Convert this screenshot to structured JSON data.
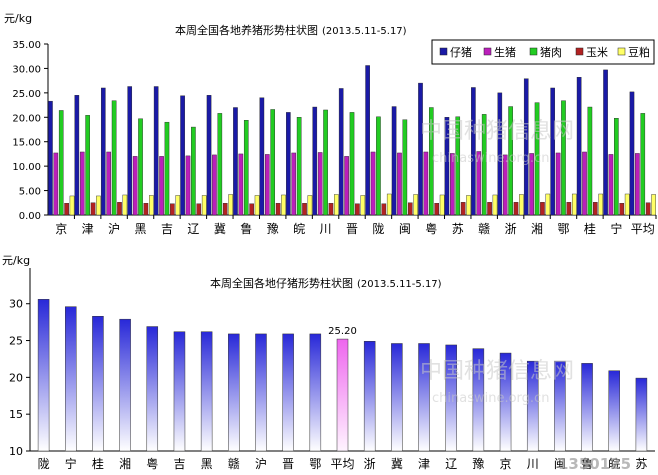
{
  "chart_data": [
    {
      "type": "bar",
      "title": "本周全国各地养猪形势柱状图",
      "date_range": "(2013.5.11-5.17)",
      "ylabel": "元/kg",
      "ylim": [
        0,
        35
      ],
      "ytick_labels": [
        "0.00",
        "5.00",
        "10.00",
        "15.00",
        "20.00",
        "25.00",
        "30.00",
        "35.00"
      ],
      "legend_position": "top-right",
      "categories": [
        "京",
        "津",
        "沪",
        "黑",
        "吉",
        "辽",
        "冀",
        "鲁",
        "豫",
        "皖",
        "川",
        "晋",
        "陇",
        "闽",
        "粤",
        "苏",
        "赣",
        "浙",
        "湘",
        "鄂",
        "桂",
        "宁",
        "平均"
      ],
      "series": [
        {
          "name": "仔猪",
          "color": "#1a1aa6",
          "values": [
            23.3,
            24.5,
            26.0,
            26.3,
            26.3,
            24.4,
            24.5,
            22.0,
            24.0,
            21.0,
            22.1,
            25.9,
            30.6,
            22.2,
            27.0,
            20.0,
            26.1,
            25.0,
            27.9,
            26.0,
            28.2,
            29.7,
            25.2
          ]
        },
        {
          "name": "生猪",
          "color": "#bb1fbb",
          "values": [
            12.7,
            12.9,
            12.9,
            12.0,
            12.0,
            12.1,
            12.3,
            12.5,
            12.4,
            12.7,
            12.8,
            12.0,
            12.9,
            12.7,
            12.9,
            12.6,
            13.0,
            12.3,
            12.6,
            12.7,
            12.9,
            12.4,
            12.6
          ]
        },
        {
          "name": "猪肉",
          "color": "#22cc22",
          "values": [
            21.4,
            20.4,
            23.4,
            19.7,
            19.0,
            18.0,
            20.8,
            19.4,
            21.6,
            20.0,
            21.5,
            21.0,
            20.1,
            19.5,
            22.0,
            20.1,
            20.6,
            22.2,
            23.0,
            23.4,
            22.1,
            19.8,
            20.8
          ]
        },
        {
          "name": "玉米",
          "color": "#b22222",
          "values": [
            2.4,
            2.5,
            2.6,
            2.4,
            2.3,
            2.3,
            2.4,
            2.3,
            2.4,
            2.4,
            2.4,
            2.3,
            2.3,
            2.5,
            2.4,
            2.6,
            2.6,
            2.6,
            2.6,
            2.6,
            2.6,
            2.4,
            2.5
          ]
        },
        {
          "name": "豆粕",
          "color": "#ffff66",
          "values": [
            3.9,
            3.9,
            4.1,
            4.0,
            4.0,
            4.0,
            4.2,
            4.0,
            4.1,
            4.0,
            4.2,
            4.0,
            4.3,
            4.2,
            4.1,
            4.0,
            4.1,
            4.2,
            4.3,
            4.3,
            4.3,
            4.3,
            4.2
          ]
        }
      ],
      "grid": false
    },
    {
      "type": "bar",
      "title": "本周全国各地仔猪形势柱状图",
      "date_range": "(2013.5.11-5.17)",
      "ylabel": "元/kg",
      "ylim": [
        10,
        32
      ],
      "ytick_labels": [
        "10",
        "15",
        "20",
        "25",
        "30"
      ],
      "categories": [
        "陇",
        "宁",
        "桂",
        "湘",
        "粤",
        "吉",
        "黑",
        "赣",
        "沪",
        "晋",
        "鄂",
        "平均",
        "浙",
        "冀",
        "津",
        "辽",
        "豫",
        "京",
        "川",
        "闽",
        "鲁",
        "皖",
        "苏"
      ],
      "values": [
        30.6,
        29.6,
        28.3,
        27.9,
        26.9,
        26.2,
        26.2,
        25.9,
        25.9,
        25.9,
        25.9,
        25.2,
        24.9,
        24.6,
        24.6,
        24.4,
        23.9,
        23.3,
        22.2,
        22.2,
        21.9,
        20.9,
        19.9
      ],
      "highlight": {
        "category": "平均",
        "label": "25.20",
        "color": "#ee66ee"
      },
      "bar_color": "#2828d8",
      "grid": false
    }
  ],
  "watermark": {
    "text": "中国种猪信息网",
    "url": "chinaswine.org.cn",
    "corner_code": "1350125"
  }
}
